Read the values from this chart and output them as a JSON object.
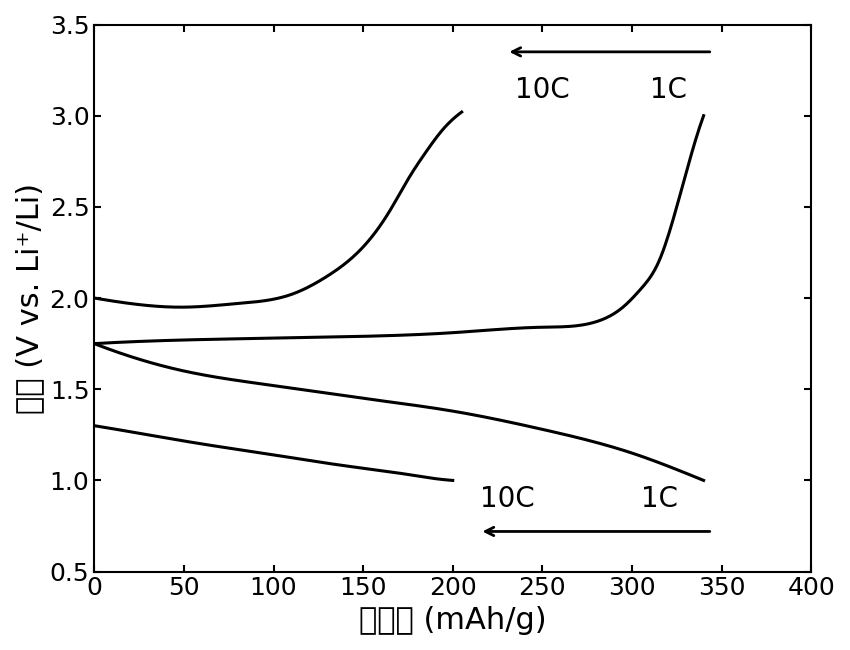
{
  "xlabel": "比容量 (mAh/g)",
  "ylabel": "电压 (V vs. Li⁺/Li)",
  "xlim": [
    0,
    400
  ],
  "ylim": [
    0.5,
    3.5
  ],
  "xticks": [
    0,
    50,
    100,
    150,
    200,
    250,
    300,
    350,
    400
  ],
  "yticks": [
    0.5,
    1.0,
    1.5,
    2.0,
    2.5,
    3.0,
    3.5
  ],
  "line_color": "#000000",
  "line_width": 2.2,
  "bg_color": "#ffffff",
  "label_fontsize": 22,
  "tick_fontsize": 18,
  "annotation_fontsize": 20
}
